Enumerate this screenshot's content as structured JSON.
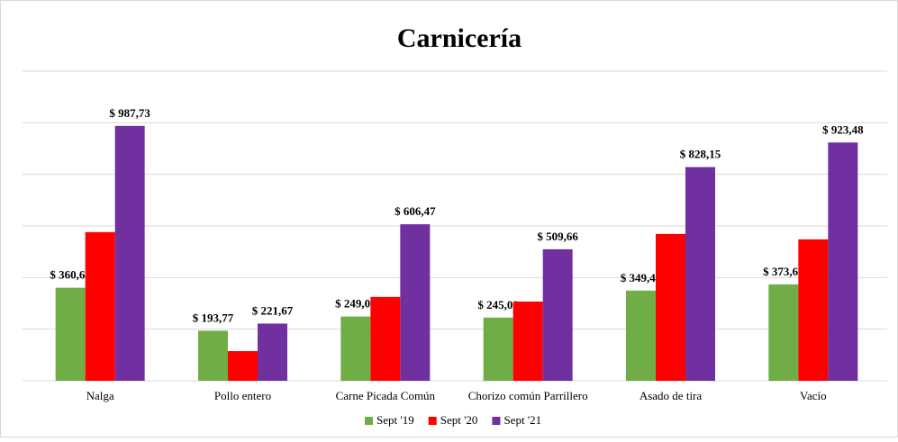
{
  "chart_data": {
    "type": "bar",
    "title": "Carnicería",
    "categories": [
      "Nalga",
      "Pollo entero",
      "Carne Picada Común",
      "Chorizo común Parrillero",
      "Asado de tira",
      "Vacío"
    ],
    "series": [
      {
        "name": "Sept '19",
        "color": "#70ad47",
        "values": [
          360.65,
          193.77,
          249.07,
          245.0,
          349.47,
          373.6
        ],
        "value_labels": [
          "$ 360,65",
          "$ 193,77",
          "$ 249,07",
          "$ 245,00",
          "$ 349,47",
          "$ 373,60"
        ]
      },
      {
        "name": "Sept '20",
        "color": "#ff0000",
        "values": [
          576,
          115,
          325,
          307,
          569,
          548
        ]
      },
      {
        "name": "Sept '21",
        "color": "#7030a0",
        "values": [
          987.73,
          221.67,
          606.47,
          509.66,
          828.15,
          923.48
        ],
        "value_labels": [
          "$ 987,73",
          "$ 221,67",
          "$ 606,47",
          "$ 509,66",
          "$ 828,15",
          "$ 923,48"
        ]
      }
    ],
    "ylim": [
      0,
      1200
    ],
    "yticks": [
      0,
      200,
      400,
      600,
      800,
      1000,
      1200
    ],
    "grid": true,
    "legend": "bottom"
  }
}
